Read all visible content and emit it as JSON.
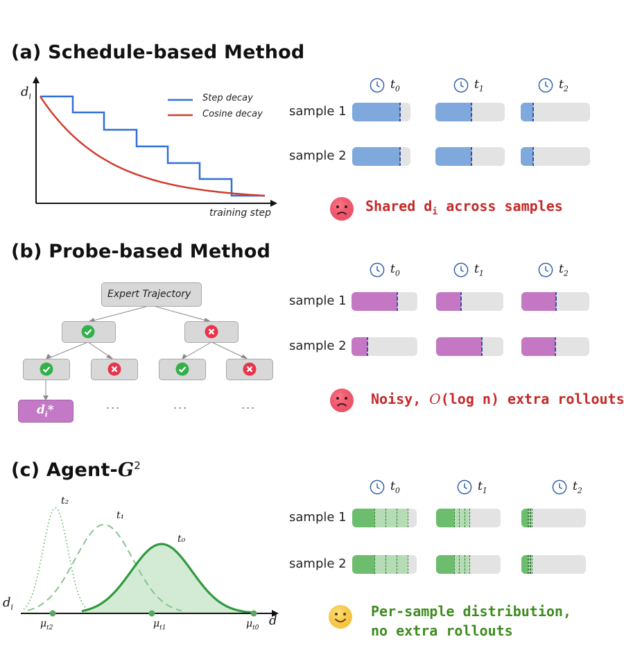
{
  "sections": {
    "a": {
      "title": "(a) Schedule-based Method",
      "y_axis_label": "d",
      "y_axis_sub": "i",
      "x_axis_label": "training step",
      "legend": [
        "Step decay",
        "Cosine decay"
      ],
      "message": "Shared d",
      "message_sub": "i",
      "message_rest": " across samples",
      "face": "sad-face-icon"
    },
    "b": {
      "title": "(b) Probe-based Method",
      "root_label": "Expert Trajectory",
      "leaf_label": "d",
      "leaf_sub": "i",
      "leaf_star": "*",
      "ellipsis": "...",
      "message_a": "Noisy, ",
      "message_b": "O",
      "message_c": "(log n) extra rollouts",
      "face": "sad-face-icon"
    },
    "c": {
      "title": "(c) Agent-",
      "title_g": "G",
      "title_sup": "2",
      "y_axis_label": "d",
      "y_axis_sub": "i",
      "x_axis_label": "d",
      "curve_labels": [
        "t₂",
        "t₁",
        "t₀"
      ],
      "mu_labels": [
        "μ",
        "μ",
        "μ"
      ],
      "mu_subs": [
        "t2",
        "t1",
        "t0"
      ],
      "message_line1": "Per-sample distribution,",
      "message_line2": "no extra rollouts",
      "face": "smiley-face-icon"
    }
  },
  "time_labels": [
    {
      "t": "t",
      "sub": "0"
    },
    {
      "t": "t",
      "sub": "1"
    },
    {
      "t": "t",
      "sub": "2"
    }
  ],
  "sample_labels": [
    "sample 1",
    "sample 2"
  ],
  "bars": {
    "a": [
      [
        0.82,
        0.52,
        0.18
      ],
      [
        0.82,
        0.52,
        0.18
      ]
    ],
    "b": [
      [
        0.69,
        0.37,
        0.51
      ],
      [
        0.24,
        0.68,
        0.5
      ]
    ],
    "c": [
      [
        0.34,
        0.28,
        0.1
      ],
      [
        0.34,
        0.28,
        0.1
      ]
    ]
  },
  "colors": {
    "step_decay": "#2f6fd6",
    "cosine_decay": "#d23b2e",
    "bar_blue": "#7fa9dd",
    "bar_purple": "#c477c2",
    "bar_green": "#6dbd6e",
    "bar_green_light": "#b5dcb5",
    "msg_red": "#c62828",
    "msg_green": "#3d8b1f",
    "curve_green": "#2e9a3e",
    "check_green": "#33b04a",
    "cross_red": "#e8344b",
    "leaf_purple": "#c479c6"
  }
}
